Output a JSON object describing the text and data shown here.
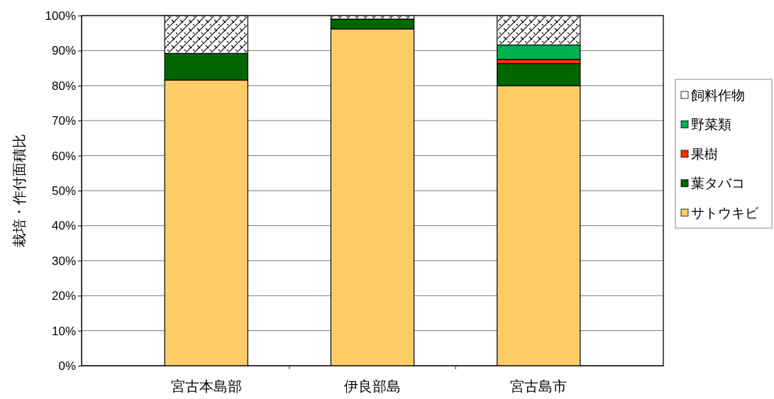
{
  "chart_data": {
    "type": "bar",
    "stacked": true,
    "ylabel": "栽培・作付面積比",
    "categories": [
      "宮古本島部",
      "伊良部島",
      "宮古島市"
    ],
    "series": [
      {
        "name": "サトウキビ",
        "color": "#ffcc66",
        "values": [
          81.6,
          96.2,
          80.0
        ]
      },
      {
        "name": "葉タバコ",
        "color": "#006600",
        "values": [
          7.6,
          2.8,
          6.3
        ]
      },
      {
        "name": "果樹",
        "color": "#ff3300",
        "values": [
          0,
          0,
          1.2
        ]
      },
      {
        "name": "野菜類",
        "color": "#00b050",
        "values": [
          0,
          0,
          4.1
        ]
      },
      {
        "name": "飼料作物",
        "color": "#ffffff",
        "values": [
          10.8,
          1.0,
          8.4
        ]
      }
    ],
    "ylim": [
      0,
      100
    ],
    "yticks": [
      {
        "value": 0,
        "label": "0%"
      },
      {
        "value": 10,
        "label": "10%"
      },
      {
        "value": 20,
        "label": "20%"
      },
      {
        "value": 30,
        "label": "30%"
      },
      {
        "value": 40,
        "label": "40%"
      },
      {
        "value": 50,
        "label": "50%"
      },
      {
        "value": 60,
        "label": "60%"
      },
      {
        "value": 70,
        "label": "70%"
      },
      {
        "value": 80,
        "label": "80%"
      },
      {
        "value": 90,
        "label": "90%"
      },
      {
        "value": 100,
        "label": "100%"
      }
    ],
    "grid": "y",
    "legend": "right"
  }
}
